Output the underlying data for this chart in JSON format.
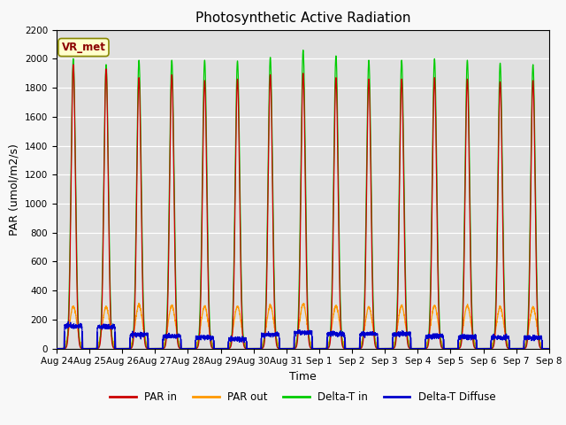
{
  "title": "Photosynthetic Active Radiation",
  "ylabel": "PAR (umol/m2/s)",
  "xlabel": "Time",
  "annotation": "VR_met",
  "ylim": [
    0,
    2200
  ],
  "tick_labels": [
    "Aug 24",
    "Aug 25",
    "Aug 26",
    "Aug 27",
    "Aug 28",
    "Aug 29",
    "Aug 30",
    "Aug 31",
    "Sep 1",
    "Sep 2",
    "Sep 3",
    "Sep 4",
    "Sep 5",
    "Sep 6",
    "Sep 7",
    "Sep 8"
  ],
  "legend_labels": [
    "PAR in",
    "PAR out",
    "Delta-T in",
    "Delta-T Diffuse"
  ],
  "colors": {
    "PAR_in": "#cc0000",
    "PAR_out": "#ff9900",
    "Delta_T_in": "#00cc00",
    "Delta_T_Diffuse": "#0000cc"
  },
  "bg_gray": "#e0e0e0",
  "bg_white": "#f5f5f5",
  "n_days": 15,
  "peak_green": [
    2000,
    1960,
    1990,
    1990,
    1990,
    1985,
    2010,
    2060,
    2020,
    1990,
    1990,
    2000,
    1990,
    1970,
    1960
  ],
  "peak_red": [
    1960,
    1930,
    1870,
    1890,
    1850,
    1860,
    1890,
    1900,
    1870,
    1860,
    1860,
    1870,
    1860,
    1840,
    1850
  ],
  "peak_orange": [
    290,
    285,
    300,
    295,
    290,
    290,
    295,
    305,
    295,
    285,
    295,
    295,
    295,
    285,
    285
  ],
  "peak_blue": [
    155,
    150,
    95,
    85,
    75,
    65,
    95,
    110,
    100,
    100,
    100,
    85,
    80,
    75,
    75
  ],
  "grid_color": "#ffffff",
  "title_fontsize": 11,
  "label_fontsize": 9,
  "tick_fontsize": 7.5
}
